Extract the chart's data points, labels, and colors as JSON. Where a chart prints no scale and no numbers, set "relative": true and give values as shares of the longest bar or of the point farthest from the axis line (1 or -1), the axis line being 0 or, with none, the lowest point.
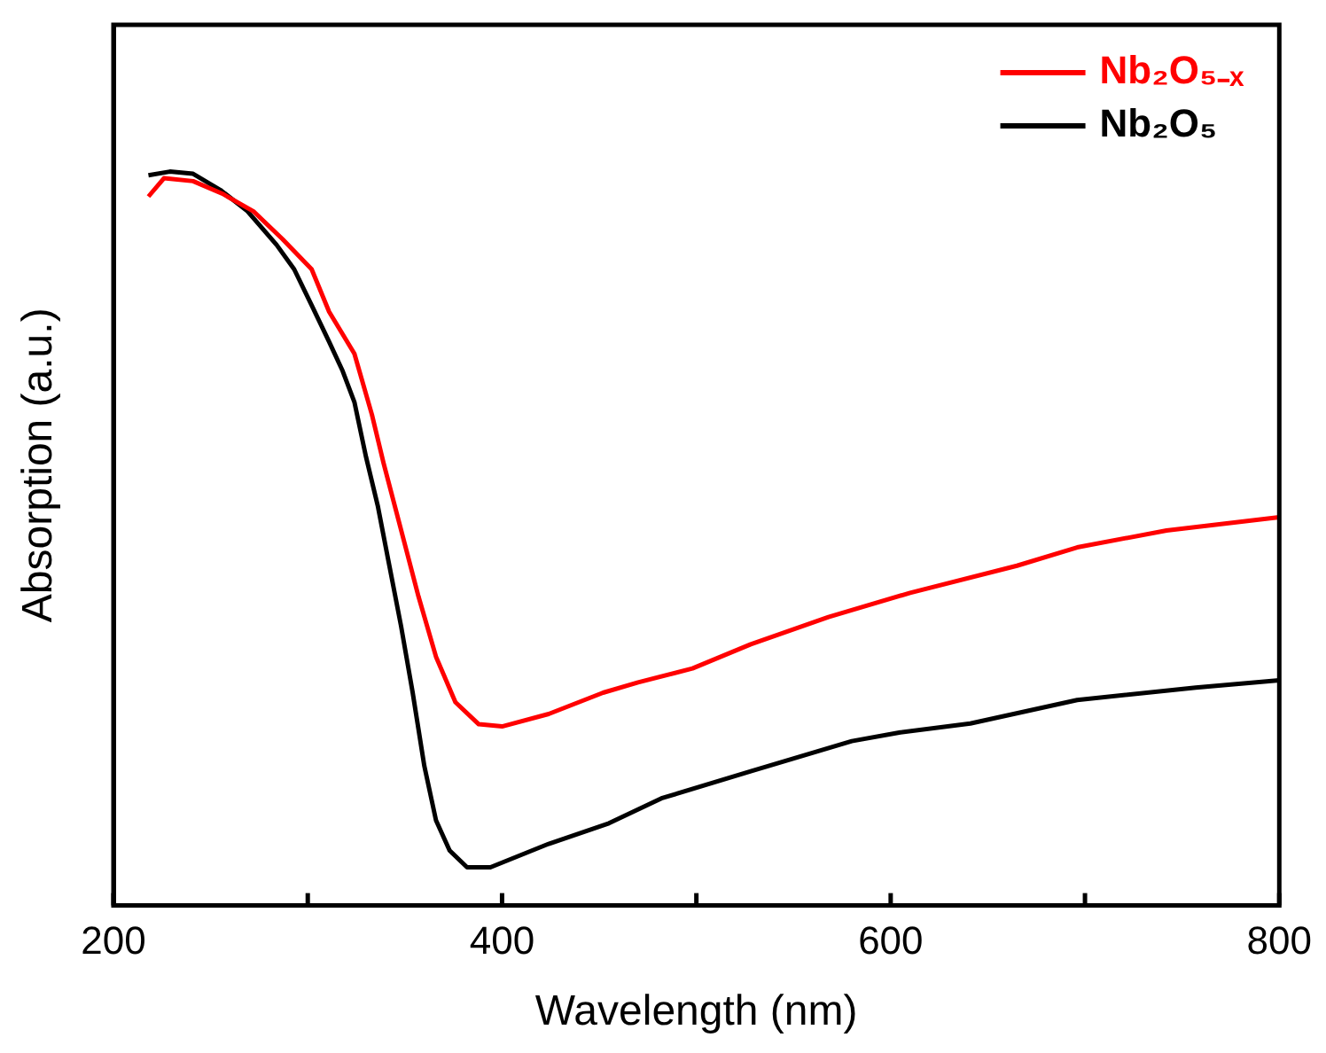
{
  "chart_data": {
    "type": "line",
    "xlabel": "Wavelength (nm)",
    "ylabel": "Absorption (a.u.)",
    "relative": true,
    "xlim": [
      200,
      800
    ],
    "xticks": [
      200,
      {
        "value": 300,
        "label": null
      },
      400,
      {
        "value": 500,
        "label": null
      },
      600,
      {
        "value": 700,
        "label": null
      },
      800
    ],
    "legend": "top right",
    "grid": false,
    "marker": "none",
    "line_style": "solid",
    "series": [
      {
        "name": "Nb₂O₅₋ₓ",
        "color": "#ff0000",
        "x": [
          218,
          226,
          241,
          256,
          272,
          287,
          302,
          311,
          324,
          333,
          339,
          348,
          357,
          366,
          376,
          388,
          400,
          424,
          452,
          470,
          498,
          528,
          568,
          610,
          665,
          696,
          742,
          800
        ],
        "values": [
          0.966,
          0.991,
          0.987,
          0.97,
          0.946,
          0.908,
          0.867,
          0.809,
          0.752,
          0.669,
          0.603,
          0.512,
          0.421,
          0.339,
          0.277,
          0.247,
          0.244,
          0.261,
          0.29,
          0.304,
          0.323,
          0.356,
          0.393,
          0.426,
          0.463,
          0.488,
          0.511,
          0.529
        ]
      },
      {
        "name": "Nb₂O₅",
        "color": "#000000",
        "x": [
          218,
          229,
          241,
          255,
          269,
          284,
          293,
          302,
          311,
          318,
          324,
          330,
          336,
          342,
          348,
          354,
          360,
          366,
          373,
          382,
          394,
          424,
          455,
          482,
          528,
          580,
          605,
          641,
          696,
          757,
          800
        ],
        "values": [
          0.995,
          1,
          0.997,
          0.975,
          0.946,
          0.9,
          0.867,
          0.818,
          0.768,
          0.728,
          0.686,
          0.611,
          0.545,
          0.463,
          0.381,
          0.29,
          0.19,
          0.116,
          0.075,
          0.052,
          0.052,
          0.084,
          0.112,
          0.146,
          0.183,
          0.224,
          0.236,
          0.248,
          0.28,
          0.297,
          0.307
        ]
      }
    ]
  }
}
